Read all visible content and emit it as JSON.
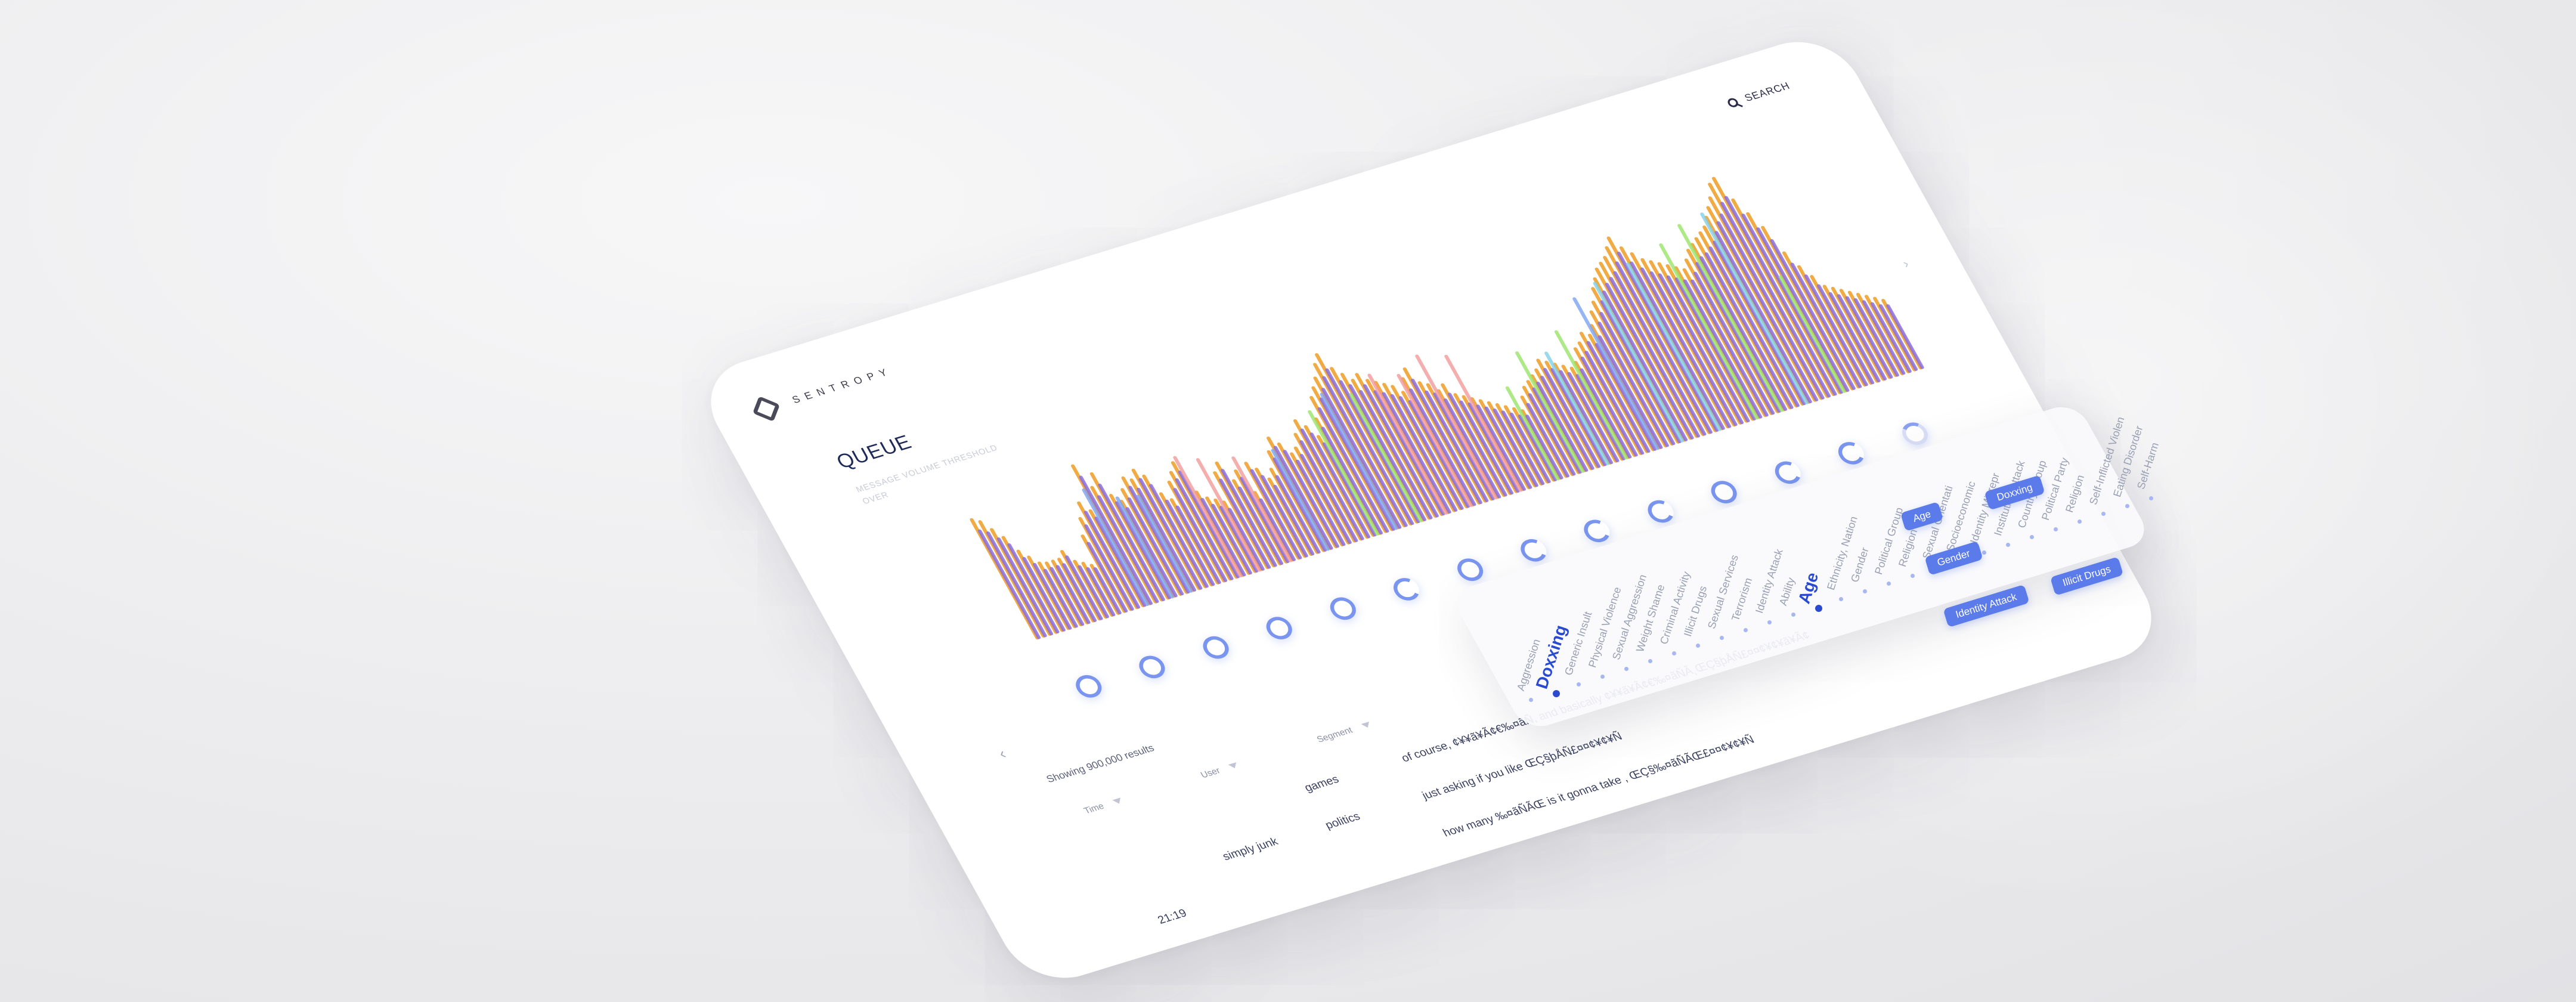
{
  "app": {
    "brand": "SENTROPY",
    "search_label": "SEARCH",
    "page_title": "QUEUE",
    "subtitle_line1": "MESSAGE VOLUME THRESHOLD",
    "subtitle_line2": "OVER"
  },
  "colors": {
    "orange": "#f0a63a",
    "purple": "#8a6fe0",
    "blue": "#7aa2f2",
    "pink": "#f29a9a",
    "green": "#9ae36a",
    "teal": "#7fd0e6",
    "accent": "#2a4bd0",
    "pill": "#5b7bea"
  },
  "chart_data": {
    "type": "bar",
    "series": [
      {
        "name": "",
        "color": "orange",
        "values": [
          62,
          60,
          55,
          50,
          42,
          38,
          34,
          33,
          33,
          33,
          36,
          30,
          28,
          26,
          40,
          48,
          55,
          50,
          72,
          60,
          66,
          54,
          50,
          55,
          60,
          58,
          62,
          58,
          48,
          44,
          52,
          56,
          60,
          44,
          40,
          38,
          36,
          50,
          54,
          44,
          48,
          36,
          50,
          46,
          40,
          44,
          52,
          58,
          54,
          48,
          50,
          56,
          62,
          58,
          52,
          60,
          70,
          74,
          78,
          84,
          88,
          80,
          76,
          72,
          74,
          70,
          68,
          66,
          64,
          60,
          66,
          70,
          62,
          60,
          56,
          58,
          52,
          50,
          48,
          46,
          44,
          42,
          40,
          38,
          36,
          42,
          46,
          48,
          50,
          52,
          56,
          54,
          52,
          50,
          48,
          50,
          56,
          58,
          62,
          60,
          64,
          70,
          74,
          80,
          84,
          88,
          90,
          92,
          96,
          100,
          94,
          90,
          86,
          84,
          82,
          80,
          78,
          76,
          80,
          84,
          86,
          88,
          90,
          92,
          96,
          100,
          104,
          110,
          112,
          100,
          92,
          84,
          70,
          62,
          56,
          50,
          48,
          46,
          44,
          42,
          40,
          38,
          36
        ]
      },
      {
        "name": "",
        "color": "purple",
        "values": [
          56,
          54,
          50,
          46,
          38,
          34,
          30,
          30,
          30,
          30,
          33,
          27,
          25,
          24,
          36,
          44,
          50,
          46,
          66,
          55,
          60,
          50,
          46,
          50,
          55,
          53,
          57,
          53,
          44,
          40,
          48,
          52,
          55,
          40,
          36,
          34,
          32,
          46,
          50,
          40,
          44,
          32,
          46,
          42,
          36,
          40,
          48,
          53,
          50,
          44,
          46,
          52,
          57,
          54,
          48,
          55,
          64,
          68,
          72,
          77,
          80,
          73,
          70,
          66,
          68,
          64,
          62,
          60,
          58,
          55,
          60,
          64,
          57,
          55,
          51,
          53,
          48,
          46,
          44,
          42,
          40,
          38,
          36,
          34,
          33,
          38,
          42,
          44,
          46,
          48,
          51,
          50,
          48,
          46,
          44,
          46,
          51,
          53,
          57,
          55,
          58,
          64,
          68,
          73,
          77,
          80,
          82,
          84,
          88,
          92,
          86,
          82,
          79,
          77,
          75,
          73,
          71,
          70,
          73,
          77,
          79,
          80,
          82,
          84,
          88,
          92,
          95,
          100,
          102,
          92,
          84,
          77,
          64,
          57,
          51,
          46,
          44,
          42,
          40,
          38,
          36,
          34,
          33
        ]
      }
    ],
    "accent_bars": [
      {
        "index": 18,
        "color": "blue",
        "value": 60
      },
      {
        "index": 22,
        "color": "blue",
        "value": 52
      },
      {
        "index": 25,
        "color": "blue",
        "value": 50
      },
      {
        "index": 33,
        "color": "pink",
        "value": 62
      },
      {
        "index": 36,
        "color": "pink",
        "value": 58
      },
      {
        "index": 41,
        "color": "pink",
        "value": 54
      },
      {
        "index": 47,
        "color": "blue",
        "value": 52
      },
      {
        "index": 55,
        "color": "green",
        "value": 64
      },
      {
        "index": 58,
        "color": "blue",
        "value": 70
      },
      {
        "index": 62,
        "color": "green",
        "value": 66
      },
      {
        "index": 66,
        "color": "pink",
        "value": 72
      },
      {
        "index": 70,
        "color": "pink",
        "value": 68
      },
      {
        "index": 74,
        "color": "pink",
        "value": 74
      },
      {
        "index": 78,
        "color": "pink",
        "value": 70
      },
      {
        "index": 84,
        "color": "green",
        "value": 48
      },
      {
        "index": 88,
        "color": "green",
        "value": 62
      },
      {
        "index": 92,
        "color": "teal",
        "value": 58
      },
      {
        "index": 95,
        "color": "green",
        "value": 66
      },
      {
        "index": 100,
        "color": "blue",
        "value": 78
      },
      {
        "index": 104,
        "color": "teal",
        "value": 82
      },
      {
        "index": 110,
        "color": "teal",
        "value": 86
      },
      {
        "index": 116,
        "color": "green",
        "value": 90
      },
      {
        "index": 120,
        "color": "green",
        "value": 96
      },
      {
        "index": 124,
        "color": "teal",
        "value": 98
      },
      {
        "index": 130,
        "color": "green",
        "value": 60
      }
    ],
    "ylim": [
      0,
      120
    ],
    "grid": false,
    "legend": "none"
  },
  "rings": {
    "count": 14,
    "fills": [
      1,
      0.8,
      1,
      1,
      0.9,
      0.7,
      1,
      0.7,
      0.6,
      0.5,
      1,
      0.7,
      0.6,
      0.4
    ]
  },
  "results": {
    "summary": "Showing 900,000 results",
    "columns": [
      "Time",
      "User",
      "Segment"
    ],
    "rows": [
      {
        "time": "",
        "user": "",
        "segment": "games",
        "message": "of course, ¢¥¥ã¥Ã¢€‰¤ãÑ, and basically ¢¥¥ã¥Ã¢€‰¤ãÑÃ¸ŒÇ§þÅÑ£¤¤¢¥¢¥ã¥Ã¢"
      },
      {
        "time": "",
        "user": "simply junk",
        "segment": "politics",
        "message": "just asking if you like ŒÇ§þÅÑ£¤¤¢¥¢¥Ñ"
      },
      {
        "time": "21:19",
        "user": "",
        "segment": "",
        "message": "how many ‰¤ãÑÃŒ is it gonna take , ŒÇ§‰¤ãÑÃŒ£¤¤¢¥¢¥Ñ"
      }
    ]
  },
  "categories": [
    {
      "label": "Aggression",
      "active": false
    },
    {
      "label": "Doxxing",
      "active": true
    },
    {
      "label": "Generic Insult",
      "active": false
    },
    {
      "label": "Physical Violence",
      "active": false
    },
    {
      "label": "Sexual Aggression",
      "active": false
    },
    {
      "label": "Weight Shame",
      "active": false
    },
    {
      "label": "Criminal Activity",
      "active": false
    },
    {
      "label": "Illicit Drugs",
      "active": false
    },
    {
      "label": "Sexual Services",
      "active": false
    },
    {
      "label": "Terrorism",
      "active": false
    },
    {
      "label": "Identity Attack",
      "active": false
    },
    {
      "label": "Ability",
      "active": false
    },
    {
      "label": "Age",
      "active": true
    },
    {
      "label": "Ethnicity, Nation",
      "active": false
    },
    {
      "label": "Gender",
      "active": false
    },
    {
      "label": "Political Group",
      "active": false
    },
    {
      "label": "Religion",
      "active": false
    },
    {
      "label": "Sexual Orientati",
      "active": false
    },
    {
      "label": "Socioeconomic",
      "active": false
    },
    {
      "label": "Identity Misrepr",
      "active": false
    },
    {
      "label": "Institution Attack",
      "active": false
    },
    {
      "label": "Country Group",
      "active": false
    },
    {
      "label": "Political Party",
      "active": false
    },
    {
      "label": "Religion",
      "active": false
    },
    {
      "label": "Self-Inflicted Violen",
      "active": false
    },
    {
      "label": "Eating Disorder",
      "active": false
    },
    {
      "label": "Self-Harm",
      "active": false
    }
  ],
  "pills": [
    "Age",
    "Doxxing",
    "Gender",
    "Identity Attack",
    "Illicit Drugs"
  ]
}
